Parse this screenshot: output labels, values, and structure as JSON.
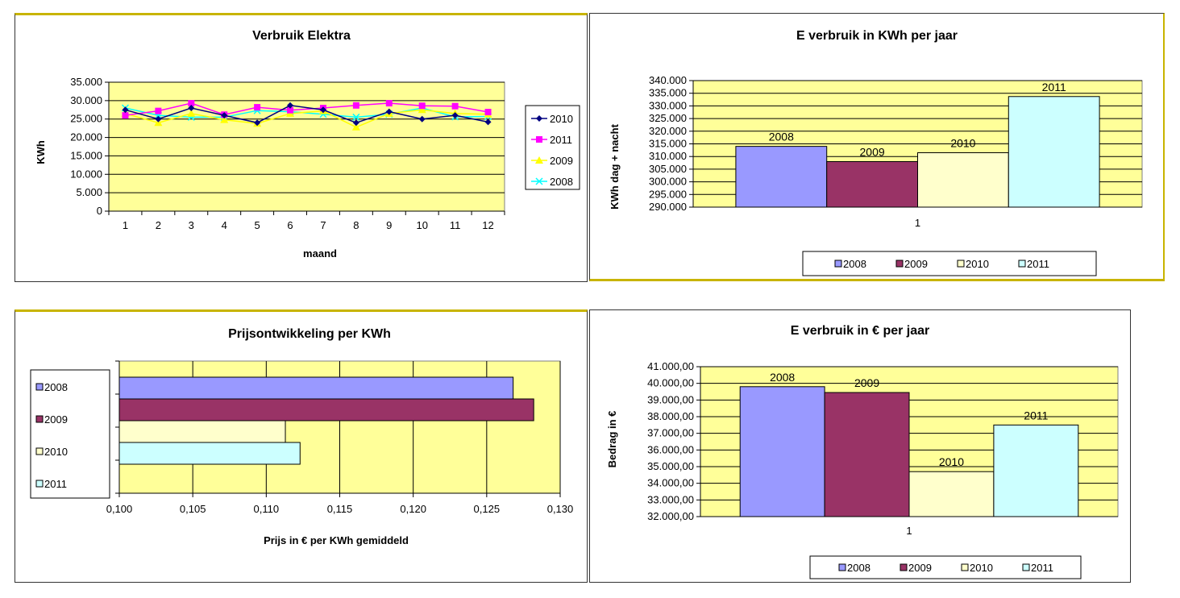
{
  "colors": {
    "plot_bg": "#FFFF99",
    "c2008": "#9999FF",
    "c2009": "#993366",
    "c2010": "#FFFFCC",
    "c2011": "#CCFFFF",
    "line2010": "#000080",
    "line2011": "#FF00FF",
    "line2009": "#FFFF00",
    "line2008": "#00FFFF",
    "frame_top": "#C8B400"
  },
  "chart_data": [
    {
      "type": "line",
      "title": "Verbruik Elektra",
      "xlabel": "maand",
      "ylabel": "KWh",
      "x": [
        "1",
        "2",
        "3",
        "4",
        "5",
        "6",
        "7",
        "8",
        "9",
        "10",
        "11",
        "12"
      ],
      "ylim": [
        0,
        35000
      ],
      "yticks": [
        "0",
        "5.000",
        "10.000",
        "15.000",
        "20.000",
        "25.000",
        "30.000",
        "35.000"
      ],
      "grid": true,
      "legend": "right",
      "series": [
        {
          "name": "2010",
          "marker": "diamond",
          "values": [
            27500,
            25000,
            28000,
            26000,
            24000,
            28700,
            27500,
            24000,
            27000,
            25000,
            26000,
            24200
          ]
        },
        {
          "name": "2011",
          "marker": "square",
          "values": [
            26000,
            27200,
            29300,
            26200,
            28200,
            27400,
            28000,
            28700,
            29300,
            28600,
            28500,
            26900
          ]
        },
        {
          "name": "2009",
          "marker": "triangle",
          "values": [
            26500,
            24000,
            26500,
            24800,
            23800,
            26500,
            27200,
            22800,
            26500,
            27500,
            26500,
            26300
          ]
        },
        {
          "name": "2008",
          "marker": "x",
          "values": [
            28000,
            26000,
            25500,
            25500,
            27300,
            27000,
            26300,
            25500,
            26300,
            28000,
            25600,
            25700
          ]
        }
      ]
    },
    {
      "type": "bar",
      "title": "E verbruik in KWh per jaar",
      "ylabel": "KWh dag + nacht",
      "categories": [
        "1"
      ],
      "ylim": [
        290000,
        340000
      ],
      "yticks": [
        "290.000",
        "295.000",
        "300.000",
        "305.000",
        "310.000",
        "315.000",
        "320.000",
        "325.000",
        "330.000",
        "335.000",
        "340.000"
      ],
      "grid": true,
      "legend": "bottom",
      "series": [
        {
          "name": "2008",
          "values": [
            314000
          ]
        },
        {
          "name": "2009",
          "values": [
            308000
          ]
        },
        {
          "name": "2010",
          "values": [
            311500
          ]
        },
        {
          "name": "2011",
          "values": [
            333700
          ]
        }
      ]
    },
    {
      "type": "bar",
      "orientation": "horizontal",
      "title": "Prijsontwikkeling per KWh",
      "xlabel": "Prijs in € per KWh gemiddeld",
      "xlim": [
        0.1,
        0.13
      ],
      "xticks": [
        "0,100",
        "0,105",
        "0,110",
        "0,115",
        "0,120",
        "0,125",
        "0,130"
      ],
      "grid": true,
      "legend": "left",
      "series": [
        {
          "name": "2008",
          "values": [
            0.1268
          ]
        },
        {
          "name": "2009",
          "values": [
            0.1282
          ]
        },
        {
          "name": "2010",
          "values": [
            0.1113
          ]
        },
        {
          "name": "2011",
          "values": [
            0.1123
          ]
        }
      ]
    },
    {
      "type": "bar",
      "title": "E verbruik in € per jaar",
      "ylabel": "Bedrag in €",
      "categories": [
        "1"
      ],
      "ylim": [
        32000,
        41000
      ],
      "yticks": [
        "32.000,00",
        "33.000,00",
        "34.000,00",
        "35.000,00",
        "36.000,00",
        "37.000,00",
        "38.000,00",
        "39.000,00",
        "40.000,00",
        "41.000,00"
      ],
      "grid": true,
      "legend": "bottom",
      "series": [
        {
          "name": "2008",
          "values": [
            39800
          ]
        },
        {
          "name": "2009",
          "values": [
            39450
          ]
        },
        {
          "name": "2010",
          "values": [
            34700
          ]
        },
        {
          "name": "2011",
          "values": [
            37500
          ]
        }
      ]
    }
  ]
}
